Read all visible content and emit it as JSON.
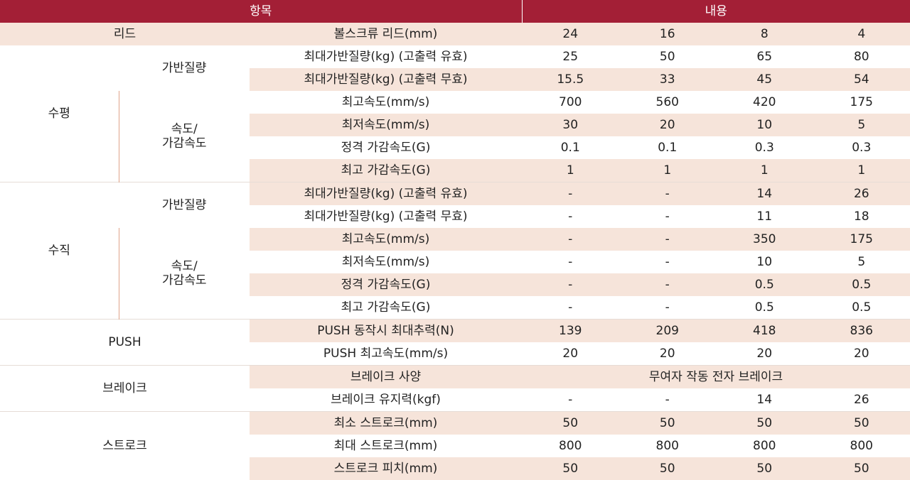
{
  "header": {
    "item": "항목",
    "content": "내용"
  },
  "lead": {
    "group": "리드",
    "label": "볼스크류 리드(mm)",
    "values": [
      "24",
      "16",
      "8",
      "4"
    ]
  },
  "horizontal": {
    "group": "수평",
    "payload_label": "가반질량",
    "speed_label_1": "속도/",
    "speed_label_2": "가감속도",
    "rows": [
      {
        "label": "최대가반질량(kg) (고출력 유효)",
        "values": [
          "25",
          "50",
          "65",
          "80"
        ]
      },
      {
        "label": "최대가반질량(kg) (고출력 무효)",
        "values": [
          "15.5",
          "33",
          "45",
          "54"
        ]
      },
      {
        "label": "최고속도(mm/s)",
        "values": [
          "700",
          "560",
          "420",
          "175"
        ]
      },
      {
        "label": "최저속도(mm/s)",
        "values": [
          "30",
          "20",
          "10",
          "5"
        ]
      },
      {
        "label": "정격 가감속도(G)",
        "values": [
          "0.1",
          "0.1",
          "0.3",
          "0.3"
        ]
      },
      {
        "label": "최고 가감속도(G)",
        "values": [
          "1",
          "1",
          "1",
          "1"
        ]
      }
    ]
  },
  "vertical": {
    "group": "수직",
    "payload_label": "가반질량",
    "speed_label_1": "속도/",
    "speed_label_2": "가감속도",
    "rows": [
      {
        "label": "최대가반질량(kg) (고출력 유효)",
        "values": [
          "-",
          "-",
          "14",
          "26"
        ]
      },
      {
        "label": "최대가반질량(kg) (고출력 무효)",
        "values": [
          "-",
          "-",
          "11",
          "18"
        ]
      },
      {
        "label": "최고속도(mm/s)",
        "values": [
          "-",
          "-",
          "350",
          "175"
        ]
      },
      {
        "label": "최저속도(mm/s)",
        "values": [
          "-",
          "-",
          "10",
          "5"
        ]
      },
      {
        "label": "정격 가감속도(G)",
        "values": [
          "-",
          "-",
          "0.5",
          "0.5"
        ]
      },
      {
        "label": "최고 가감속도(G)",
        "values": [
          "-",
          "-",
          "0.5",
          "0.5"
        ]
      }
    ]
  },
  "push": {
    "group": "PUSH",
    "rows": [
      {
        "label": "PUSH 동작시 최대추력(N)",
        "values": [
          "139",
          "209",
          "418",
          "836"
        ]
      },
      {
        "label": "PUSH 최고속도(mm/s)",
        "values": [
          "20",
          "20",
          "20",
          "20"
        ]
      }
    ]
  },
  "brake": {
    "group": "브레이크",
    "spec_label": "브레이크 사양",
    "spec_value": "무여자 작동 전자 브레이크",
    "hold": {
      "label": "브레이크 유지력(kgf)",
      "values": [
        "-",
        "-",
        "14",
        "26"
      ]
    }
  },
  "stroke": {
    "group": "스트로크",
    "rows": [
      {
        "label": "최소 스트로크(mm)",
        "values": [
          "50",
          "50",
          "50",
          "50"
        ]
      },
      {
        "label": "최대 스트로크(mm)",
        "values": [
          "800",
          "800",
          "800",
          "800"
        ]
      },
      {
        "label": "스트로크 피치(mm)",
        "values": [
          "50",
          "50",
          "50",
          "50"
        ]
      }
    ]
  },
  "colors": {
    "header_bg": "#a31f36",
    "stripe_bg": "#f6e4da",
    "divider": "#e0a48a"
  }
}
